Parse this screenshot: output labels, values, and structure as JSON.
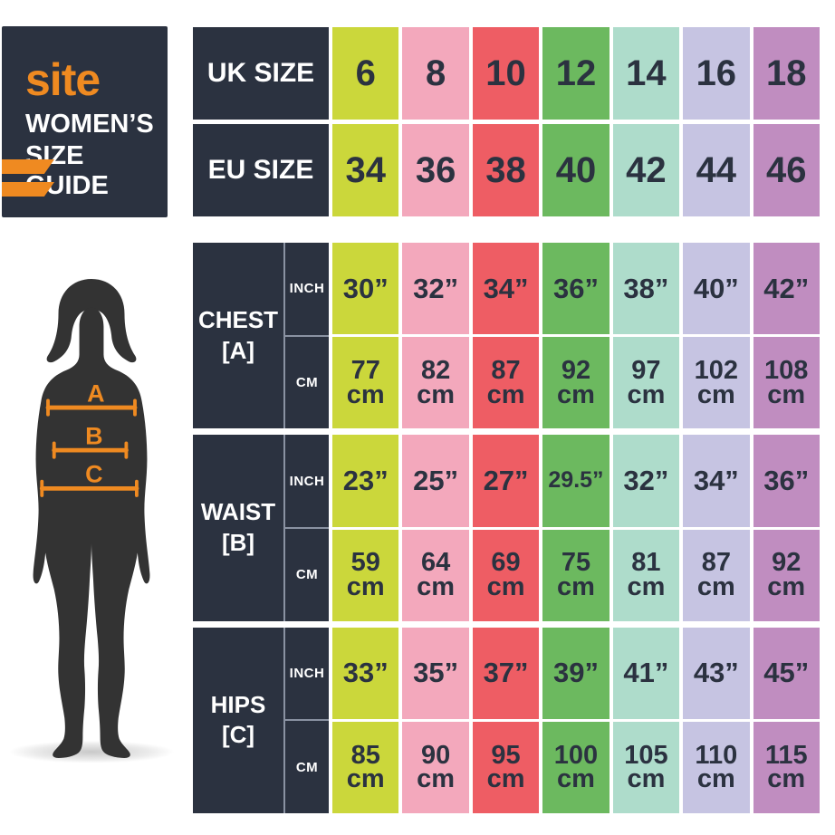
{
  "brand": {
    "logo": "site",
    "title_line1": "WOMEN’S",
    "title_line2": "SIZE GUIDE"
  },
  "colors": {
    "navy": "#2b3240",
    "orange": "#ef8a21",
    "silhouette": "#333333",
    "separator": "#8a92a2",
    "columns": [
      "#cbd73b",
      "#f3a8bc",
      "#ee5d64",
      "#6cb95f",
      "#aedccb",
      "#c6c4e2",
      "#c08dc0"
    ]
  },
  "size_table": {
    "rows": [
      {
        "label": "UK SIZE",
        "values": [
          "6",
          "8",
          "10",
          "12",
          "14",
          "16",
          "18"
        ]
      },
      {
        "label": "EU SIZE",
        "values": [
          "34",
          "36",
          "38",
          "40",
          "42",
          "44",
          "46"
        ]
      }
    ]
  },
  "measure_table": {
    "unit_inch_label": "INCH",
    "unit_cm_label": "CM",
    "cm_unit": "cm",
    "sections": [
      {
        "name": "CHEST",
        "ref": "[A]",
        "inch": [
          "30”",
          "32”",
          "34”",
          "36”",
          "38”",
          "40”",
          "42”"
        ],
        "cm": [
          "77",
          "82",
          "87",
          "92",
          "97",
          "102",
          "108"
        ]
      },
      {
        "name": "WAIST",
        "ref": "[B]",
        "inch": [
          "23”",
          "25”",
          "27”",
          "29.5”",
          "32”",
          "34”",
          "36”"
        ],
        "cm": [
          "59",
          "64",
          "69",
          "75",
          "81",
          "87",
          "92"
        ]
      },
      {
        "name": "HIPS",
        "ref": "[C]",
        "inch": [
          "33”",
          "35”",
          "37”",
          "39”",
          "41”",
          "43”",
          "45”"
        ],
        "cm": [
          "85",
          "90",
          "95",
          "100",
          "105",
          "110",
          "115"
        ]
      }
    ]
  },
  "figure": {
    "labels": [
      "A",
      "B",
      "C"
    ]
  }
}
